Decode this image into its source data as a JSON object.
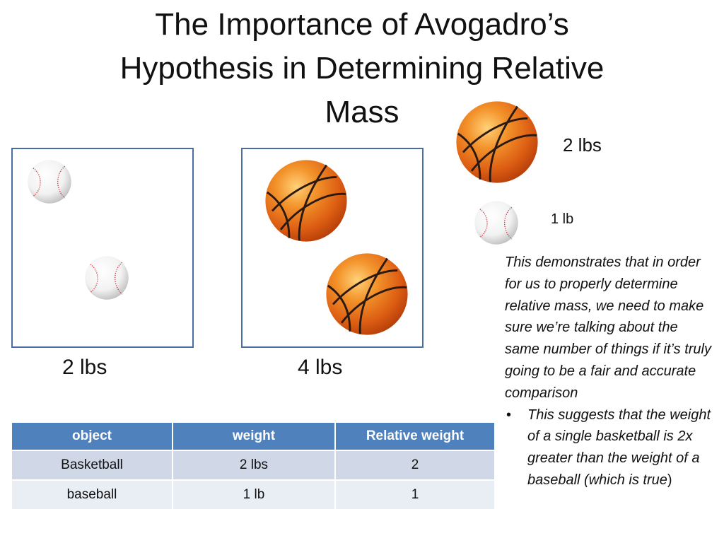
{
  "slide": {
    "title_line1": "The Importance of Avogadro’s",
    "title_line2": "Hypothesis in Determining Relative",
    "title_line3": "Mass"
  },
  "legend": {
    "basketball_weight": "2 lbs",
    "baseball_weight": "1 lb"
  },
  "boxes": {
    "left_caption": "2 lbs",
    "right_caption": "4 lbs"
  },
  "paragraph": {
    "main": "This demonstrates that in order for us to properly determine relative mass, we need to make sure we’re talking about the same number of things if it’s truly going to be a fair and accurate comparison",
    "bullet_italic": "This suggests that the weight of a single basketball is 2x greater than the weight of a baseball (which is true",
    "bullet_end": ")"
  },
  "table": {
    "headers": [
      "object",
      "weight",
      "Relative weight"
    ],
    "rows": [
      [
        "Basketball",
        "2 lbs",
        "2"
      ],
      [
        "baseball",
        "1 lb",
        "1"
      ]
    ]
  },
  "icons": {
    "basketball": "basketball-icon",
    "baseball": "baseball-icon"
  },
  "colors": {
    "table_header": "#4f81bd",
    "table_row_1": "#d0d8e8",
    "table_row_2": "#e9edf4",
    "box_border": "#4a6ea3",
    "basketball": "#e8681a",
    "baseball_stitch": "#c8323c"
  }
}
